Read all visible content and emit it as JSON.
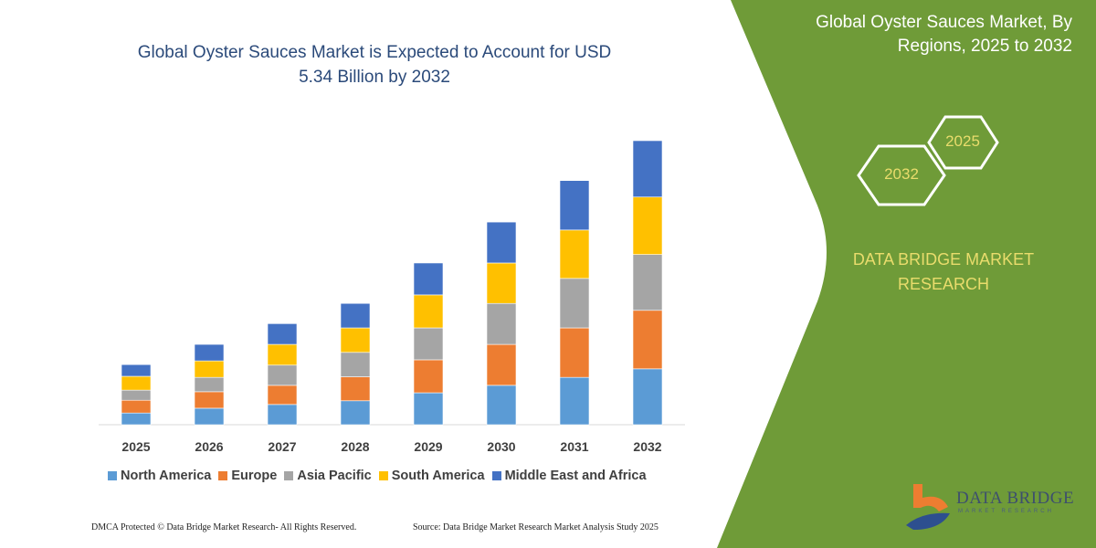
{
  "title": {
    "line1": "Global Oyster Sauces Market is Expected to Account for USD",
    "line2": "5.34 Billion by 2032"
  },
  "side_panel": {
    "title_line1": "Global Oyster Sauces Market, By",
    "title_line2": "Regions, 2025 to 2032",
    "hexagon_start": "2025",
    "hexagon_end": "2032",
    "brand_line1": "DATA BRIDGE MARKET",
    "brand_line2": "RESEARCH",
    "logo_text": "DATA BRIDGE",
    "logo_subtext": "MARKET RESEARCH",
    "panel_color": "#6f9b38",
    "accent_text_color": "#e9dc6c"
  },
  "footer": {
    "copyright": "DMCA Protected © Data Bridge Market Research-  All Rights Reserved.",
    "source": "Source: Data Bridge Market Research  Market Analysis Study 2025"
  },
  "chart_data": {
    "type": "bar",
    "stacked": true,
    "title": "Global Oyster Sauces Market is Expected to Account for USD 5.34 Billion by 2032",
    "xlabel": "",
    "ylabel": "",
    "ylim": [
      0,
      5.34
    ],
    "grid": false,
    "y_axis_shown": false,
    "legend_position": "bottom",
    "categories": [
      "2025",
      "2026",
      "2027",
      "2028",
      "2029",
      "2030",
      "2031",
      "2032"
    ],
    "series": [
      {
        "name": "North America",
        "color": "#5b9bd5",
        "values": [
          0.22,
          0.31,
          0.38,
          0.45,
          0.6,
          0.74,
          0.89,
          1.05
        ]
      },
      {
        "name": "Europe",
        "color": "#ed7d31",
        "values": [
          0.24,
          0.31,
          0.36,
          0.45,
          0.62,
          0.77,
          0.93,
          1.1
        ]
      },
      {
        "name": "Asia Pacific",
        "color": "#a5a5a5",
        "values": [
          0.19,
          0.27,
          0.38,
          0.46,
          0.6,
          0.77,
          0.93,
          1.05
        ]
      },
      {
        "name": "South America",
        "color": "#ffc000",
        "values": [
          0.26,
          0.31,
          0.39,
          0.46,
          0.62,
          0.76,
          0.91,
          1.08
        ]
      },
      {
        "name": "Middle East and Africa",
        "color": "#4472c4",
        "values": [
          0.22,
          0.31,
          0.39,
          0.46,
          0.6,
          0.77,
          0.93,
          1.06
        ]
      }
    ]
  }
}
